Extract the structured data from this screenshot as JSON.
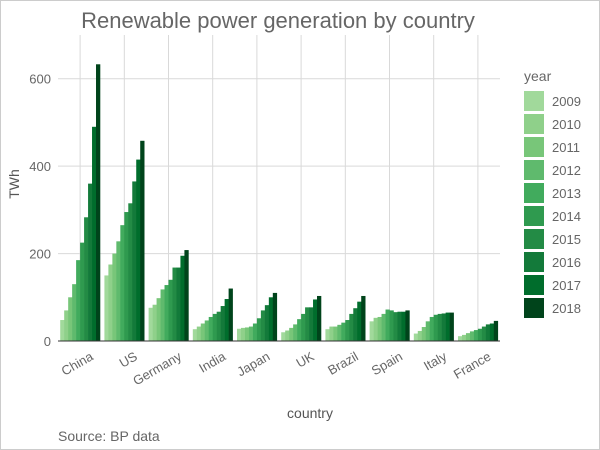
{
  "chart_data": {
    "type": "bar",
    "title": "Renewable power generation by country",
    "xlabel": "country",
    "ylabel": "TWh",
    "caption": "Source: BP data",
    "legend_title": "year",
    "legend_position": "right",
    "grid": true,
    "ylim": [
      0,
      700
    ],
    "yticks": [
      0,
      200,
      400,
      600
    ],
    "categories": [
      "China",
      "US",
      "Germany",
      "India",
      "Japan",
      "UK",
      "Brazil",
      "Spain",
      "Italy",
      "France"
    ],
    "series": [
      {
        "name": "2009",
        "color": "#a1d99b",
        "values": [
          48,
          150,
          76,
          27,
          28,
          20,
          27,
          45,
          17,
          11
        ]
      },
      {
        "name": "2010",
        "color": "#8fd08a",
        "values": [
          70,
          175,
          83,
          33,
          30,
          24,
          33,
          53,
          23,
          14
        ]
      },
      {
        "name": "2011",
        "color": "#78c679",
        "values": [
          100,
          200,
          98,
          40,
          31,
          30,
          33,
          55,
          32,
          18
        ]
      },
      {
        "name": "2012",
        "color": "#5fba6d",
        "values": [
          130,
          228,
          118,
          47,
          33,
          38,
          37,
          62,
          45,
          22
        ]
      },
      {
        "name": "2013",
        "color": "#41ab5d",
        "values": [
          185,
          265,
          128,
          55,
          40,
          50,
          42,
          72,
          55,
          25
        ]
      },
      {
        "name": "2014",
        "color": "#2f9a4f",
        "values": [
          225,
          295,
          140,
          62,
          52,
          62,
          48,
          70,
          60,
          28
        ]
      },
      {
        "name": "2015",
        "color": "#238b45",
        "values": [
          283,
          315,
          168,
          67,
          70,
          77,
          62,
          66,
          62,
          33
        ]
      },
      {
        "name": "2016",
        "color": "#137a3a",
        "values": [
          360,
          365,
          168,
          80,
          82,
          77,
          75,
          67,
          63,
          38
        ]
      },
      {
        "name": "2017",
        "color": "#006d2c",
        "values": [
          490,
          415,
          195,
          96,
          100,
          95,
          90,
          67,
          65,
          40
        ]
      },
      {
        "name": "2018",
        "color": "#00441b",
        "values": [
          633,
          458,
          208,
          120,
          110,
          103,
          103,
          70,
          65,
          46
        ]
      }
    ]
  }
}
